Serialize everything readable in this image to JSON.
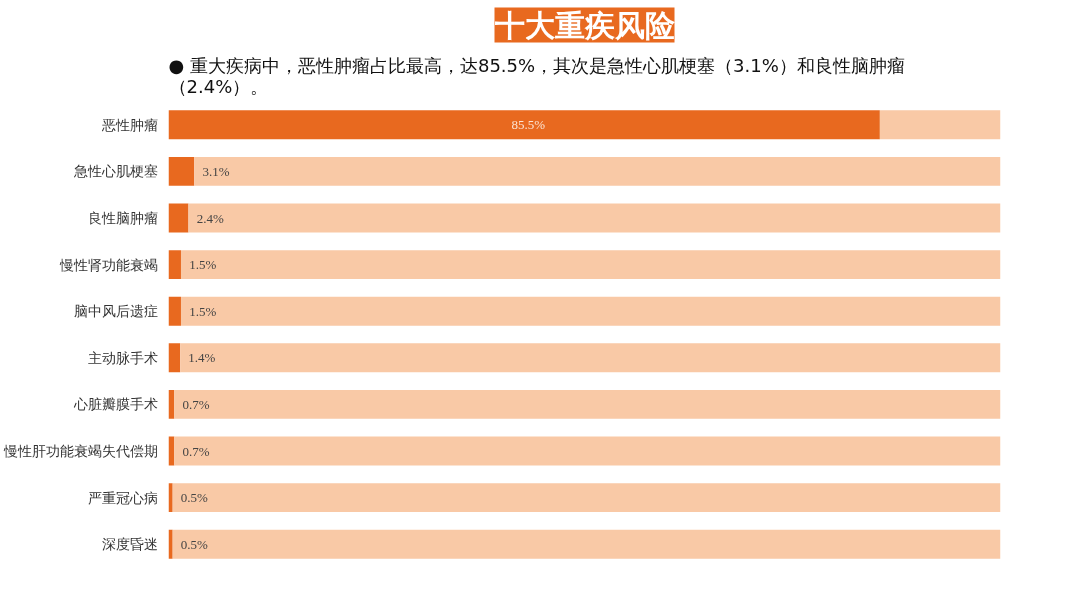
{
  "chart_data": {
    "type": "bar",
    "orientation": "horizontal",
    "stacked": true,
    "title": "十大重疾风险",
    "subtitle": "● 重大疾病中，恶性肿瘤占比最高，达85.5%，其次是急性心肌梗塞（3.1%）和良性脑肿瘤（2.4%）。",
    "categories": [
      "恶性肿瘤",
      "急性心肌梗塞",
      "良性脑肿瘤",
      "慢性肾功能衰竭",
      "脑中风后遗症",
      "主动脉手术",
      "心脏瓣膜手术",
      "慢性肝功能衰竭失代偿期",
      "严重冠心病",
      "深度昏迷"
    ],
    "series": [
      {
        "color": "#e8691f",
        "values": [
          85.5,
          3.1,
          2.4,
          1.5,
          1.5,
          1.4,
          0.7,
          0.7,
          0.5,
          0.5
        ],
        "value_labels": [
          "85.5%",
          "3.1%",
          "2.4%",
          "1.5%",
          "1.5%",
          "1.4%",
          "0.7%",
          "0.7%",
          "0.5%",
          "0.5%"
        ]
      },
      {
        "color": "#f9c9a6",
        "values": [
          14.5,
          96.9,
          97.6,
          98.5,
          98.5,
          98.6,
          99.3,
          99.3,
          99.5,
          99.5
        ]
      }
    ],
    "xlim": [
      0,
      100
    ],
    "tick_labels": "y",
    "grid": false
  }
}
